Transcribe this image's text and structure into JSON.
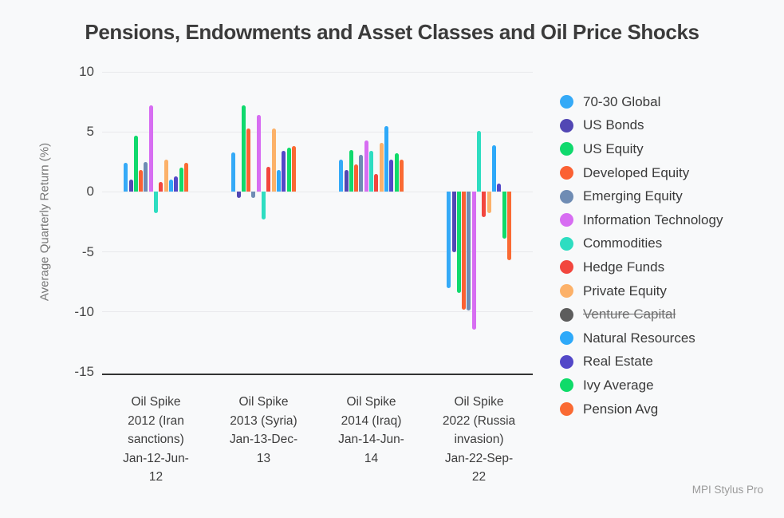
{
  "footer": {
    "credit": "MPI Stylus Pro"
  },
  "chart_data": {
    "type": "bar",
    "title": "Pensions, Endowments and Asset Classes and Oil Price Shocks",
    "ylabel": "Average Quarterly Return (%)",
    "xlabel": "",
    "ylim": [
      -15,
      10
    ],
    "yticks": [
      10,
      5,
      0,
      -5,
      -10,
      -15
    ],
    "grid": true,
    "legend_position": "right",
    "categories": [
      "Oil Spike 2012 (Iran sanctions) Jan-12-Jun-12",
      "Oil Spike 2013 (Syria) Jan-13-Dec-13",
      "Oil Spike 2014 (Iraq) Jan-14-Jun-14",
      "Oil Spike 2022 (Russia invasion) Jan-22-Sep-22"
    ],
    "category_lines": [
      "Oil Spike\n2012 (Iran\nsanctions)\nJan-12-Jun-\n12",
      "Oil Spike\n2013 (Syria)\nJan-13-Dec-\n13",
      "Oil Spike\n2014 (Iraq)\nJan-14-Jun-\n14",
      "Oil Spike\n2022 (Russia\ninvasion)\nJan-22-Sep-\n22"
    ],
    "series": [
      {
        "name": "70-30 Global",
        "color": "#35aaf7",
        "values": [
          2.4,
          3.3,
          2.7,
          -8.0
        ]
      },
      {
        "name": "US Bonds",
        "color": "#5247b4",
        "values": [
          1.0,
          -0.5,
          1.8,
          -5.0
        ]
      },
      {
        "name": "US Equity",
        "color": "#10d96d",
        "values": [
          4.7,
          7.2,
          3.5,
          -8.4
        ]
      },
      {
        "name": "Developed Equity",
        "color": "#fb6133",
        "values": [
          1.8,
          5.3,
          2.3,
          -9.8
        ]
      },
      {
        "name": "Emerging Equity",
        "color": "#6f8cb4",
        "values": [
          2.5,
          -0.5,
          3.1,
          -9.9
        ]
      },
      {
        "name": "Information Technology",
        "color": "#d76df2",
        "values": [
          7.2,
          6.4,
          4.3,
          -11.5
        ]
      },
      {
        "name": "Commodities",
        "color": "#2eddc1",
        "values": [
          -1.8,
          -2.3,
          3.4,
          5.1
        ]
      },
      {
        "name": "Hedge Funds",
        "color": "#f2463e",
        "values": [
          0.8,
          2.1,
          1.5,
          -2.1
        ]
      },
      {
        "name": "Private Equity",
        "color": "#fcb169",
        "values": [
          2.7,
          5.3,
          4.1,
          -1.8
        ]
      },
      {
        "name": "Venture Capital",
        "color": "#5d5d5d",
        "values": null,
        "hidden": true
      },
      {
        "name": "Natural Resources",
        "color": "#2ea9f9",
        "values": [
          1.0,
          1.8,
          5.5,
          3.9
        ]
      },
      {
        "name": "Real Estate",
        "color": "#5348c8",
        "values": [
          1.3,
          3.4,
          2.7,
          0.7
        ]
      },
      {
        "name": "Ivy Average",
        "color": "#0fdb69",
        "values": [
          2.0,
          3.7,
          3.2,
          -3.9
        ]
      },
      {
        "name": "Pension Avg",
        "color": "#fa6a33",
        "values": [
          2.4,
          3.8,
          2.7,
          -5.7
        ]
      }
    ]
  }
}
